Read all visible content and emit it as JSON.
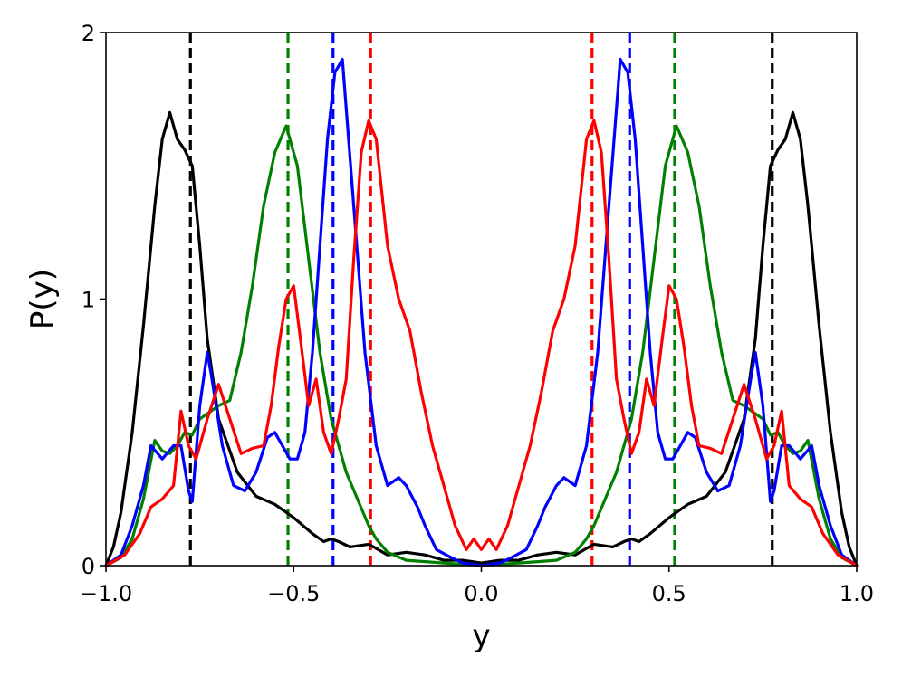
{
  "chart_data": {
    "type": "line",
    "title": "",
    "xlabel": "y",
    "ylabel": "P(y)",
    "xlim": [
      -1.0,
      1.0
    ],
    "ylim": [
      0,
      2
    ],
    "x_ticks": [
      -1.0,
      -0.5,
      0.0,
      0.5,
      1.0
    ],
    "x_tick_labels": [
      "−1.0",
      "−0.5",
      "0.0",
      "0.5",
      "1.0"
    ],
    "y_ticks": [
      0,
      1,
      2
    ],
    "y_tick_labels": [
      "0",
      "1",
      "2"
    ],
    "grid": false,
    "legend": "none",
    "symmetric_about_zero": true,
    "series": [
      {
        "color": "#000000",
        "vline_x": 0.775,
        "half_points": [
          [
            0.0,
            0.01
          ],
          [
            0.05,
            0.02
          ],
          [
            0.1,
            0.02
          ],
          [
            0.15,
            0.04
          ],
          [
            0.2,
            0.05
          ],
          [
            0.25,
            0.04
          ],
          [
            0.3,
            0.08
          ],
          [
            0.35,
            0.07
          ],
          [
            0.38,
            0.09
          ],
          [
            0.4,
            0.1
          ],
          [
            0.42,
            0.09
          ],
          [
            0.45,
            0.12
          ],
          [
            0.5,
            0.18
          ],
          [
            0.55,
            0.23
          ],
          [
            0.6,
            0.26
          ],
          [
            0.65,
            0.35
          ],
          [
            0.7,
            0.55
          ],
          [
            0.73,
            0.85
          ],
          [
            0.75,
            1.2
          ],
          [
            0.77,
            1.5
          ],
          [
            0.79,
            1.56
          ],
          [
            0.81,
            1.6
          ],
          [
            0.83,
            1.7
          ],
          [
            0.85,
            1.6
          ],
          [
            0.87,
            1.35
          ],
          [
            0.9,
            0.9
          ],
          [
            0.93,
            0.5
          ],
          [
            0.96,
            0.2
          ],
          [
            0.98,
            0.07
          ],
          [
            1.0,
            0.0
          ]
        ]
      },
      {
        "color": "#008000",
        "vline_x": 0.515,
        "half_points": [
          [
            0.0,
            0.0
          ],
          [
            0.1,
            0.01
          ],
          [
            0.2,
            0.02
          ],
          [
            0.25,
            0.05
          ],
          [
            0.28,
            0.1
          ],
          [
            0.3,
            0.15
          ],
          [
            0.33,
            0.25
          ],
          [
            0.36,
            0.35
          ],
          [
            0.4,
            0.55
          ],
          [
            0.43,
            0.8
          ],
          [
            0.46,
            1.15
          ],
          [
            0.49,
            1.5
          ],
          [
            0.52,
            1.65
          ],
          [
            0.55,
            1.55
          ],
          [
            0.58,
            1.35
          ],
          [
            0.61,
            1.05
          ],
          [
            0.64,
            0.8
          ],
          [
            0.67,
            0.62
          ],
          [
            0.7,
            0.6
          ],
          [
            0.72,
            0.58
          ],
          [
            0.75,
            0.55
          ],
          [
            0.77,
            0.49
          ],
          [
            0.79,
            0.5
          ],
          [
            0.81,
            0.45
          ],
          [
            0.83,
            0.42
          ],
          [
            0.85,
            0.43
          ],
          [
            0.87,
            0.47
          ],
          [
            0.9,
            0.25
          ],
          [
            0.93,
            0.1
          ],
          [
            0.96,
            0.03
          ],
          [
            1.0,
            0.0
          ]
        ]
      },
      {
        "color": "#0000ff",
        "vline_x": 0.395,
        "half_points": [
          [
            0.0,
            0.0
          ],
          [
            0.05,
            0.01
          ],
          [
            0.08,
            0.03
          ],
          [
            0.12,
            0.06
          ],
          [
            0.15,
            0.15
          ],
          [
            0.17,
            0.22
          ],
          [
            0.2,
            0.3
          ],
          [
            0.22,
            0.33
          ],
          [
            0.25,
            0.3
          ],
          [
            0.28,
            0.45
          ],
          [
            0.31,
            0.8
          ],
          [
            0.34,
            1.35
          ],
          [
            0.37,
            1.9
          ],
          [
            0.39,
            1.85
          ],
          [
            0.41,
            1.6
          ],
          [
            0.43,
            1.2
          ],
          [
            0.45,
            0.8
          ],
          [
            0.47,
            0.5
          ],
          [
            0.49,
            0.4
          ],
          [
            0.51,
            0.4
          ],
          [
            0.53,
            0.45
          ],
          [
            0.55,
            0.5
          ],
          [
            0.57,
            0.48
          ],
          [
            0.6,
            0.35
          ],
          [
            0.63,
            0.28
          ],
          [
            0.66,
            0.3
          ],
          [
            0.69,
            0.45
          ],
          [
            0.72,
            0.72
          ],
          [
            0.73,
            0.8
          ],
          [
            0.75,
            0.6
          ],
          [
            0.77,
            0.24
          ],
          [
            0.78,
            0.28
          ],
          [
            0.8,
            0.45
          ],
          [
            0.82,
            0.45
          ],
          [
            0.85,
            0.4
          ],
          [
            0.88,
            0.45
          ],
          [
            0.9,
            0.3
          ],
          [
            0.93,
            0.15
          ],
          [
            0.96,
            0.04
          ],
          [
            1.0,
            0.0
          ]
        ]
      },
      {
        "color": "#ff0000",
        "vline_x": 0.295,
        "half_points": [
          [
            0.0,
            0.06
          ],
          [
            0.02,
            0.1
          ],
          [
            0.04,
            0.06
          ],
          [
            0.07,
            0.15
          ],
          [
            0.1,
            0.3
          ],
          [
            0.13,
            0.45
          ],
          [
            0.16,
            0.65
          ],
          [
            0.19,
            0.88
          ],
          [
            0.22,
            1.0
          ],
          [
            0.25,
            1.2
          ],
          [
            0.28,
            1.6
          ],
          [
            0.3,
            1.67
          ],
          [
            0.32,
            1.55
          ],
          [
            0.34,
            1.15
          ],
          [
            0.36,
            0.7
          ],
          [
            0.38,
            0.55
          ],
          [
            0.4,
            0.42
          ],
          [
            0.42,
            0.5
          ],
          [
            0.44,
            0.7
          ],
          [
            0.46,
            0.6
          ],
          [
            0.48,
            0.83
          ],
          [
            0.5,
            1.05
          ],
          [
            0.52,
            1.0
          ],
          [
            0.54,
            0.82
          ],
          [
            0.56,
            0.6
          ],
          [
            0.58,
            0.45
          ],
          [
            0.61,
            0.44
          ],
          [
            0.64,
            0.42
          ],
          [
            0.67,
            0.55
          ],
          [
            0.7,
            0.68
          ],
          [
            0.73,
            0.55
          ],
          [
            0.76,
            0.4
          ],
          [
            0.78,
            0.45
          ],
          [
            0.8,
            0.58
          ],
          [
            0.82,
            0.3
          ],
          [
            0.85,
            0.25
          ],
          [
            0.88,
            0.22
          ],
          [
            0.91,
            0.12
          ],
          [
            0.95,
            0.04
          ],
          [
            1.0,
            0.0
          ]
        ]
      }
    ]
  }
}
